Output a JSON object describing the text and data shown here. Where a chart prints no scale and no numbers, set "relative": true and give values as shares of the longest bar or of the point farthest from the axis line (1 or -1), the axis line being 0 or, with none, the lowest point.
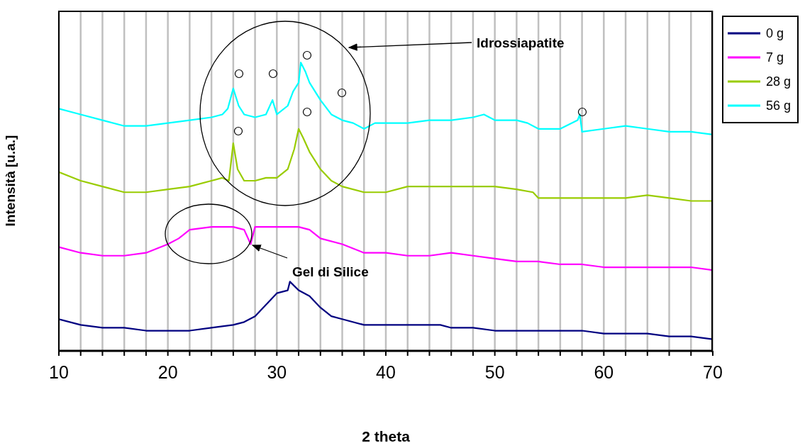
{
  "chart_data": {
    "type": "line",
    "relative": true,
    "xlabel": "2 theta",
    "ylabel": "Intensità [u.a.]",
    "legend": "top right",
    "grid": "x",
    "marker": "none",
    "line_style": "solid",
    "xlim": [
      10,
      70
    ],
    "xticks": [
      10,
      {
        "value": 12,
        "label": null
      },
      {
        "value": 14,
        "label": null
      },
      {
        "value": 16,
        "label": null
      },
      {
        "value": 18,
        "label": null
      },
      20,
      {
        "value": 22,
        "label": null
      },
      {
        "value": 24,
        "label": null
      },
      {
        "value": 26,
        "label": null
      },
      {
        "value": 28,
        "label": null
      },
      30,
      {
        "value": 32,
        "label": null
      },
      {
        "value": 34,
        "label": null
      },
      {
        "value": 36,
        "label": null
      },
      {
        "value": 38,
        "label": null
      },
      40,
      {
        "value": 42,
        "label": null
      },
      {
        "value": 44,
        "label": null
      },
      {
        "value": 46,
        "label": null
      },
      {
        "value": 48,
        "label": null
      },
      50,
      {
        "value": 52,
        "label": null
      },
      {
        "value": 54,
        "label": null
      },
      {
        "value": 56,
        "label": null
      },
      {
        "value": 58,
        "label": null
      },
      60,
      {
        "value": 62,
        "label": null
      },
      {
        "value": 64,
        "label": null
      },
      {
        "value": 66,
        "label": null
      },
      {
        "value": 68,
        "label": null
      },
      70
    ],
    "annotations": [
      "Idrossiapatite",
      "Gel di Silice"
    ],
    "series": [
      {
        "name": "0 g",
        "color": "#000080",
        "x": [
          10,
          12,
          14,
          16,
          18,
          20,
          22,
          24,
          26,
          27,
          28,
          29,
          30,
          31,
          31.2,
          32,
          33,
          34,
          35,
          36,
          38,
          40,
          42,
          44,
          45,
          46,
          48,
          50,
          52,
          54,
          56,
          58,
          60,
          62,
          64,
          66,
          68,
          70
        ],
        "values": [
          0.11,
          0.09,
          0.08,
          0.08,
          0.07,
          0.07,
          0.07,
          0.08,
          0.09,
          0.1,
          0.12,
          0.16,
          0.2,
          0.21,
          0.24,
          0.21,
          0.19,
          0.15,
          0.12,
          0.11,
          0.09,
          0.09,
          0.09,
          0.09,
          0.09,
          0.08,
          0.08,
          0.07,
          0.07,
          0.07,
          0.07,
          0.07,
          0.06,
          0.06,
          0.06,
          0.05,
          0.05,
          0.04
        ]
      },
      {
        "name": "7 g",
        "color": "#ff00ff",
        "x": [
          10,
          12,
          14,
          16,
          18,
          20,
          21,
          22,
          24,
          26,
          27,
          27.6,
          28,
          30,
          32,
          33,
          34,
          36,
          38,
          40,
          42,
          44,
          46,
          48,
          50,
          52,
          54,
          56,
          58,
          60,
          62,
          64,
          66,
          68,
          70
        ],
        "values": [
          0.36,
          0.34,
          0.33,
          0.33,
          0.34,
          0.37,
          0.39,
          0.42,
          0.43,
          0.43,
          0.42,
          0.37,
          0.43,
          0.43,
          0.43,
          0.42,
          0.39,
          0.37,
          0.34,
          0.34,
          0.33,
          0.33,
          0.34,
          0.33,
          0.32,
          0.31,
          0.31,
          0.3,
          0.3,
          0.29,
          0.29,
          0.29,
          0.29,
          0.29,
          0.28
        ]
      },
      {
        "name": "28 g",
        "color": "#99cc00",
        "x": [
          10,
          12,
          14,
          16,
          18,
          20,
          22,
          24,
          25,
          25.6,
          26,
          26.4,
          27,
          28,
          29,
          30,
          31,
          31.6,
          32,
          32.4,
          33,
          34,
          35,
          36,
          38,
          40,
          42,
          44,
          46,
          48,
          50,
          52,
          53.5,
          54,
          56,
          58,
          60,
          62,
          64,
          66,
          68,
          70
        ],
        "values": [
          0.62,
          0.59,
          0.57,
          0.55,
          0.55,
          0.56,
          0.57,
          0.59,
          0.6,
          0.59,
          0.72,
          0.63,
          0.59,
          0.59,
          0.6,
          0.6,
          0.63,
          0.7,
          0.77,
          0.74,
          0.69,
          0.63,
          0.59,
          0.57,
          0.55,
          0.55,
          0.57,
          0.57,
          0.57,
          0.57,
          0.57,
          0.56,
          0.55,
          0.53,
          0.53,
          0.53,
          0.53,
          0.53,
          0.54,
          0.53,
          0.52,
          0.52
        ]
      },
      {
        "name": "56 g",
        "color": "#00ffff",
        "x": [
          10,
          12,
          14,
          16,
          18,
          20,
          22,
          24,
          25,
          25.5,
          26,
          26.5,
          27,
          28,
          29,
          29.6,
          30,
          31,
          31.5,
          32,
          32.2,
          32.6,
          33,
          34,
          35,
          36,
          37,
          38,
          39,
          40,
          42,
          44,
          46,
          48,
          49,
          50,
          52,
          53,
          54,
          56,
          57.6,
          57.8,
          58,
          60,
          62,
          64,
          66,
          68,
          70
        ],
        "values": [
          0.84,
          0.82,
          0.8,
          0.78,
          0.78,
          0.79,
          0.8,
          0.81,
          0.82,
          0.84,
          0.91,
          0.85,
          0.82,
          0.81,
          0.82,
          0.87,
          0.82,
          0.85,
          0.9,
          0.93,
          1,
          0.97,
          0.93,
          0.87,
          0.82,
          0.8,
          0.79,
          0.77,
          0.79,
          0.79,
          0.79,
          0.8,
          0.8,
          0.81,
          0.82,
          0.8,
          0.8,
          0.79,
          0.77,
          0.77,
          0.8,
          0.82,
          0.76,
          0.77,
          0.78,
          0.77,
          0.76,
          0.76,
          0.75
        ]
      }
    ]
  }
}
